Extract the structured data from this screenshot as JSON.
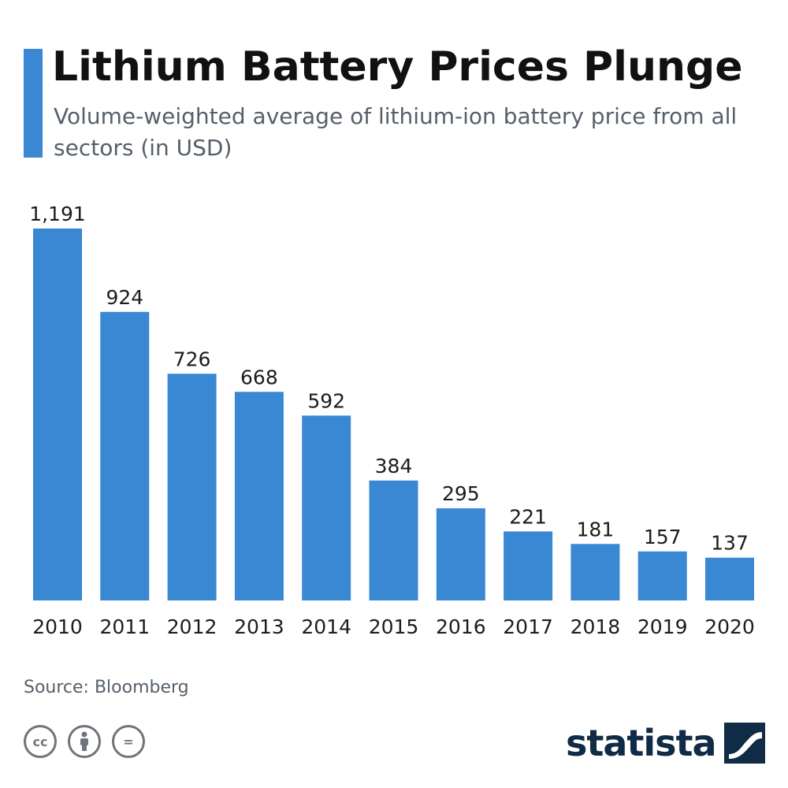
{
  "header": {
    "title": "Lithium Battery Prices Plunge",
    "subtitle": "Volume-weighted average of lithium-ion battery price from all sectors (in USD)"
  },
  "chart_data": {
    "type": "bar",
    "categories": [
      "2010",
      "2011",
      "2012",
      "2013",
      "2014",
      "2015",
      "2016",
      "2017",
      "2018",
      "2019",
      "2020"
    ],
    "values": [
      1191,
      924,
      726,
      668,
      592,
      384,
      295,
      221,
      181,
      157,
      137
    ],
    "value_labels": [
      "1,191",
      "924",
      "726",
      "668",
      "592",
      "384",
      "295",
      "221",
      "181",
      "157",
      "137"
    ],
    "title": "Lithium Battery Prices Plunge",
    "xlabel": "",
    "ylabel": "",
    "ylim": [
      0,
      1191
    ],
    "grid": false,
    "legend": "none",
    "bar_color": "#3a87d4"
  },
  "footer": {
    "source": "Source: Bloomberg",
    "license_icons": [
      "cc-icon",
      "by-icon",
      "nd-icon"
    ],
    "cc_glyph": "cc",
    "nd_glyph": "=",
    "brand": "statista"
  },
  "colors": {
    "accent": "#3a87d4",
    "title": "#111111",
    "subtitle": "#56606a",
    "brand": "#0f2b46"
  }
}
